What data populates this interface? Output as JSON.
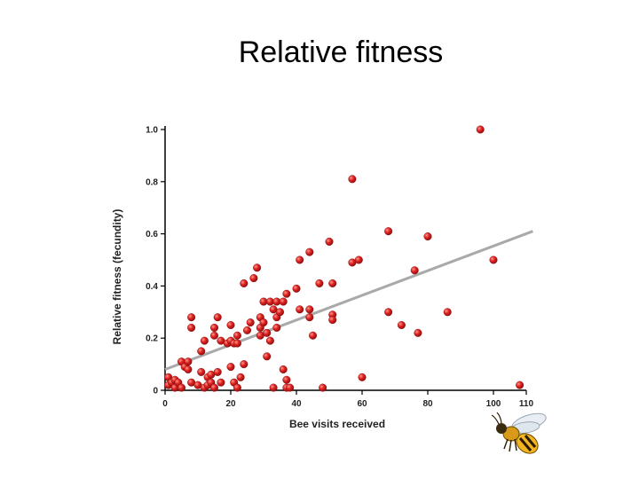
{
  "slide": {
    "title": "Relative fitness"
  },
  "chart_data": {
    "type": "scatter",
    "title": "",
    "xlabel": "Bee visits received",
    "ylabel": "Relative fitness (fecundity)",
    "xlim": [
      0,
      110
    ],
    "ylim": [
      0,
      1.0
    ],
    "x_ticks": [
      0,
      20,
      40,
      60,
      80,
      100,
      110
    ],
    "x_tick_labels": [
      "0",
      "20",
      "40",
      "60",
      "80",
      "100",
      "110"
    ],
    "y_ticks": [
      0,
      0.2,
      0.4,
      0.6,
      0.8,
      1.0
    ],
    "y_tick_labels": [
      "0",
      "0.2",
      "0.4",
      "0.6",
      "0.8",
      "1.0"
    ],
    "grid": false,
    "legend": "none",
    "point_color": "#d81e1e",
    "trend_color": "#a9a9a9",
    "trend_line": {
      "x": [
        0,
        112
      ],
      "y": [
        0.08,
        0.61
      ]
    },
    "points": [
      [
        1,
        0.05
      ],
      [
        1,
        0.02
      ],
      [
        2,
        0.03
      ],
      [
        3,
        0.01
      ],
      [
        3,
        0.04
      ],
      [
        4,
        0.03
      ],
      [
        5,
        0.01
      ],
      [
        5,
        0.11
      ],
      [
        6,
        0.09
      ],
      [
        7,
        0.08
      ],
      [
        7,
        0.11
      ],
      [
        8,
        0.03
      ],
      [
        8,
        0.24
      ],
      [
        8,
        0.28
      ],
      [
        10,
        0.02
      ],
      [
        11,
        0.15
      ],
      [
        11,
        0.07
      ],
      [
        12,
        0.19
      ],
      [
        12,
        0.01
      ],
      [
        13,
        0.05
      ],
      [
        13,
        0.02
      ],
      [
        14,
        0.03
      ],
      [
        14,
        0.06
      ],
      [
        15,
        0.01
      ],
      [
        15,
        0.24
      ],
      [
        15,
        0.21
      ],
      [
        16,
        0.28
      ],
      [
        16,
        0.07
      ],
      [
        17,
        0.03
      ],
      [
        17,
        0.19
      ],
      [
        19,
        0.18
      ],
      [
        20,
        0.25
      ],
      [
        20,
        0.19
      ],
      [
        20,
        0.09
      ],
      [
        21,
        0.18
      ],
      [
        21,
        0.03
      ],
      [
        22,
        0.01
      ],
      [
        22,
        0.21
      ],
      [
        22,
        0.18
      ],
      [
        23,
        0.05
      ],
      [
        24,
        0.41
      ],
      [
        24,
        0.1
      ],
      [
        25,
        0.23
      ],
      [
        26,
        0.26
      ],
      [
        27,
        0.43
      ],
      [
        28,
        0.47
      ],
      [
        29,
        0.28
      ],
      [
        29,
        0.24
      ],
      [
        29,
        0.21
      ],
      [
        30,
        0.26
      ],
      [
        30,
        0.34
      ],
      [
        31,
        0.13
      ],
      [
        31,
        0.22
      ],
      [
        32,
        0.34
      ],
      [
        32,
        0.19
      ],
      [
        33,
        0.01
      ],
      [
        33,
        0.31
      ],
      [
        34,
        0.28
      ],
      [
        34,
        0.34
      ],
      [
        34,
        0.24
      ],
      [
        35,
        0.3
      ],
      [
        36,
        0.08
      ],
      [
        36,
        0.34
      ],
      [
        37,
        0.37
      ],
      [
        37,
        0.01
      ],
      [
        37,
        0.04
      ],
      [
        38,
        0.01
      ],
      [
        40,
        0.39
      ],
      [
        41,
        0.5
      ],
      [
        41,
        0.31
      ],
      [
        44,
        0.53
      ],
      [
        44,
        0.31
      ],
      [
        44,
        0.28
      ],
      [
        45,
        0.21
      ],
      [
        47,
        0.41
      ],
      [
        48,
        0.01
      ],
      [
        50,
        0.57
      ],
      [
        51,
        0.41
      ],
      [
        51,
        0.29
      ],
      [
        51,
        0.27
      ],
      [
        57,
        0.81
      ],
      [
        57,
        0.49
      ],
      [
        59,
        0.5
      ],
      [
        60,
        0.05
      ],
      [
        68,
        0.61
      ],
      [
        68,
        0.3
      ],
      [
        72,
        0.25
      ],
      [
        76,
        0.46
      ],
      [
        77,
        0.22
      ],
      [
        80,
        0.59
      ],
      [
        86,
        0.3
      ],
      [
        96,
        1.0
      ],
      [
        100,
        0.5
      ],
      [
        108,
        0.02
      ]
    ]
  },
  "decorations": {
    "bee_icon": "bee-illustration"
  }
}
